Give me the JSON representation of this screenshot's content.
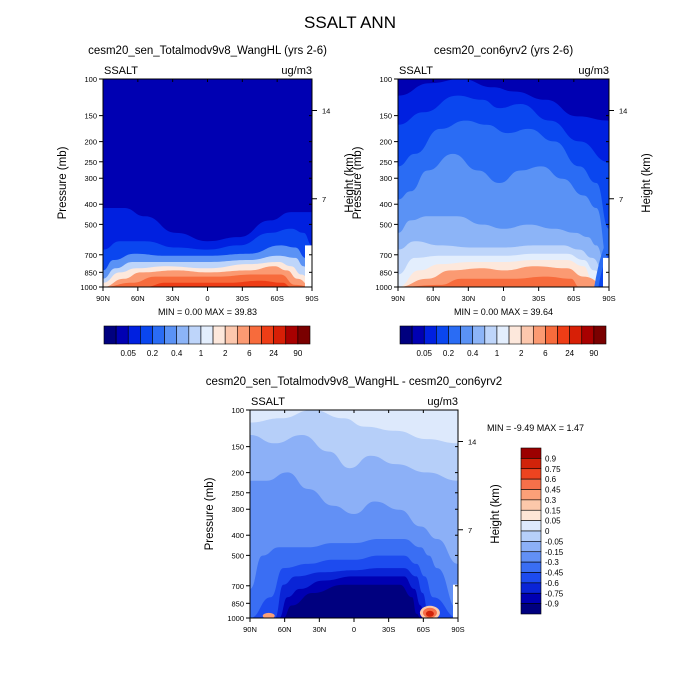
{
  "main_title": "SSALT ANN",
  "palettes": {
    "abs": [
      "#00007f",
      "#0000b2",
      "#0020e0",
      "#0a46ef",
      "#2a6cf4",
      "#5a92f5",
      "#8cb4f7",
      "#bed5fa",
      "#e3eefd",
      "#fde8dc",
      "#fcc7ad",
      "#fb9a72",
      "#f76b3c",
      "#ee3d16",
      "#d71f06",
      "#a80000",
      "#7a0000"
    ],
    "diff": [
      "#00007f",
      "#0000b2",
      "#0a24d6",
      "#1d4bef",
      "#3a6ef3",
      "#6290f5",
      "#8cb0f7",
      "#b6cff9",
      "#dde9fc",
      "#fde6d6",
      "#fcc8aa",
      "#fba078",
      "#f6704a",
      "#ee4420",
      "#d1230a",
      "#9c0000"
    ]
  },
  "chart_data": [
    {
      "type": "contour",
      "title": "cesm20_sen_Totalmodv9v8_WangHL (yrs 2-6)",
      "left_string": "SSALT",
      "right_string": "ug/m3",
      "ylabel": "Pressure (mb)",
      "ylabel_right": "Height (km)",
      "x_ticks": [
        "90N",
        "60N",
        "30N",
        "0",
        "30S",
        "60S",
        "90S"
      ],
      "y_ticks": [
        "100",
        "150",
        "200",
        "250",
        "300",
        "400",
        "500",
        "700",
        "850",
        "1000"
      ],
      "height_ticks": [
        "14",
        "7"
      ],
      "min_label": "MIN =",
      "min": "0.00",
      "max_label": "MAX =",
      "max": "39.83",
      "levels": [
        "0.05",
        "0.2",
        "0.4",
        "1",
        "2",
        "6",
        "24",
        "90"
      ],
      "colorbar": "abs"
    },
    {
      "type": "contour",
      "title": "cesm20_con6yrv2 (yrs 2-6)",
      "left_string": "SSALT",
      "right_string": "ug/m3",
      "ylabel": "Pressure (mb)",
      "ylabel_right": "Height (km)",
      "x_ticks": [
        "90N",
        "60N",
        "30N",
        "0",
        "30S",
        "60S",
        "90S"
      ],
      "y_ticks": [
        "100",
        "150",
        "200",
        "250",
        "300",
        "400",
        "500",
        "700",
        "850",
        "1000"
      ],
      "height_ticks": [
        "14",
        "7"
      ],
      "min_label": "MIN =",
      "min": "0.00",
      "max_label": "MAX =",
      "max": "39.64",
      "levels": [
        "0.05",
        "0.2",
        "0.4",
        "1",
        "2",
        "6",
        "24",
        "90"
      ],
      "colorbar": "abs"
    },
    {
      "type": "contour",
      "title": "cesm20_sen_Totalmodv9v8_WangHL - cesm20_con6yrv2",
      "left_string": "SSALT",
      "right_string": "ug/m3",
      "ylabel": "Pressure (mb)",
      "ylabel_right": "Height (km)",
      "x_ticks": [
        "90N",
        "60N",
        "30N",
        "0",
        "30S",
        "60S",
        "90S"
      ],
      "y_ticks": [
        "100",
        "150",
        "200",
        "250",
        "300",
        "400",
        "500",
        "700",
        "850",
        "1000"
      ],
      "height_ticks": [
        "14",
        "7"
      ],
      "min_label": "MIN =",
      "min": "-9.49",
      "max_label": "MAX =",
      "max": "1.47",
      "levels": [
        "0.9",
        "0.75",
        "0.6",
        "0.45",
        "0.3",
        "0.15",
        "0.05",
        "0",
        "-0.05",
        "-0.15",
        "-0.3",
        "-0.45",
        "-0.6",
        "-0.75",
        "-0.9"
      ],
      "colorbar": "diff"
    }
  ]
}
